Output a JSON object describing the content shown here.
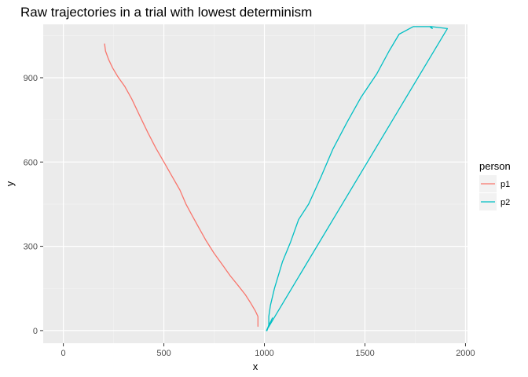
{
  "chart_data": {
    "type": "line",
    "title": "Raw trajectories in a trial with lowest determinism",
    "xlabel": "x",
    "ylabel": "y",
    "xlim": [
      -100,
      2010
    ],
    "ylim": [
      -45,
      1090
    ],
    "x_ticks": [
      0,
      500,
      1000,
      1500,
      2000
    ],
    "y_ticks": [
      0,
      300,
      600,
      900
    ],
    "x_minor": [
      250,
      750,
      1250,
      1750
    ],
    "y_minor": [
      150,
      450,
      750,
      1050
    ],
    "x_tick_labels": [
      "0",
      "500",
      "1000",
      "1500",
      "2000"
    ],
    "y_tick_labels": [
      "0",
      "300",
      "600",
      "900"
    ],
    "grid": true,
    "legend": {
      "title": "person",
      "position": "right"
    },
    "series": [
      {
        "name": "p1",
        "color": "#F8766D",
        "points": [
          [
            205,
            1020
          ],
          [
            210,
            995
          ],
          [
            225,
            965
          ],
          [
            245,
            935
          ],
          [
            270,
            905
          ],
          [
            305,
            870
          ],
          [
            340,
            825
          ],
          [
            380,
            765
          ],
          [
            420,
            705
          ],
          [
            460,
            650
          ],
          [
            500,
            600
          ],
          [
            540,
            550
          ],
          [
            580,
            500
          ],
          [
            610,
            450
          ],
          [
            640,
            410
          ],
          [
            675,
            365
          ],
          [
            710,
            320
          ],
          [
            750,
            275
          ],
          [
            790,
            235
          ],
          [
            830,
            195
          ],
          [
            870,
            160
          ],
          [
            905,
            128
          ],
          [
            930,
            100
          ],
          [
            955,
            70
          ],
          [
            968,
            50
          ],
          [
            968,
            15
          ]
        ]
      },
      {
        "name": "p2",
        "color": "#00BFC4",
        "points": [
          [
            1013,
            0
          ],
          [
            1017,
            10
          ],
          [
            1022,
            20
          ],
          [
            1022,
            50
          ],
          [
            1030,
            90
          ],
          [
            1050,
            150
          ],
          [
            1090,
            245
          ],
          [
            1130,
            315
          ],
          [
            1170,
            395
          ],
          [
            1220,
            450
          ],
          [
            1280,
            545
          ],
          [
            1340,
            645
          ],
          [
            1410,
            740
          ],
          [
            1480,
            830
          ],
          [
            1560,
            915
          ],
          [
            1620,
            995
          ],
          [
            1670,
            1055
          ],
          [
            1740,
            1082
          ],
          [
            1830,
            1082
          ],
          [
            1835,
            1075
          ],
          [
            1825,
            1080
          ],
          [
            1830,
            1082
          ],
          [
            1910,
            1075
          ],
          [
            1010,
            0
          ],
          [
            1030,
            30
          ],
          [
            1040,
            45
          ]
        ]
      }
    ]
  }
}
